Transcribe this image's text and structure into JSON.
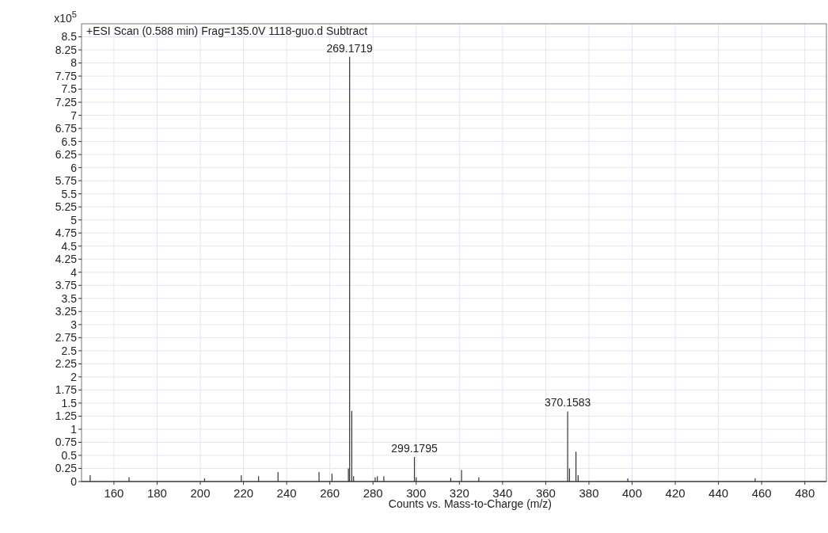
{
  "chart_data": {
    "type": "bar",
    "title": "+ESI Scan (0.588 min) Frag=135.0V 1118-guo.d  Subtract",
    "xlabel": "Counts vs. Mass-to-Charge (m/z)",
    "ylabel": "x10$^{5}$",
    "x": [
      149,
      167,
      202,
      219,
      227,
      236,
      255,
      261,
      268.6,
      269.1719,
      270.17,
      271,
      281,
      282,
      285,
      299.1795,
      300,
      316,
      321,
      329,
      370.1583,
      371,
      374,
      375,
      398,
      457
    ],
    "values": [
      0.12,
      0.08,
      0.06,
      0.12,
      0.1,
      0.18,
      0.18,
      0.15,
      0.25,
      8.12,
      1.35,
      0.1,
      0.08,
      0.1,
      0.1,
      0.47,
      0.08,
      0.07,
      0.22,
      0.08,
      1.34,
      0.25,
      0.57,
      0.12,
      0.06,
      0.06
    ],
    "color": "#333333",
    "annotations": [
      {
        "text": "269.1719",
        "x": 269.1719,
        "y": 8.12
      },
      {
        "text": "299.1795",
        "x": 299.1795,
        "y": 0.47
      },
      {
        "text": "370.1583",
        "x": 370.1583,
        "y": 1.34
      }
    ],
    "xlim": [
      145,
      490
    ],
    "xticks": [
      160,
      180,
      200,
      220,
      240,
      260,
      280,
      300,
      320,
      340,
      360,
      380,
      400,
      420,
      440,
      460,
      480
    ],
    "ylim": [
      0,
      8.75
    ],
    "yticks": [
      0,
      0.25,
      0.5,
      0.75,
      1,
      1.25,
      1.5,
      1.75,
      2,
      2.25,
      2.5,
      2.75,
      3,
      3.25,
      3.5,
      3.75,
      4,
      4.25,
      4.5,
      4.75,
      5,
      5.25,
      5.5,
      5.75,
      6,
      6.25,
      6.5,
      6.75,
      7,
      7.25,
      7.5,
      7.75,
      8,
      8.25,
      8.5
    ],
    "grid": true
  }
}
